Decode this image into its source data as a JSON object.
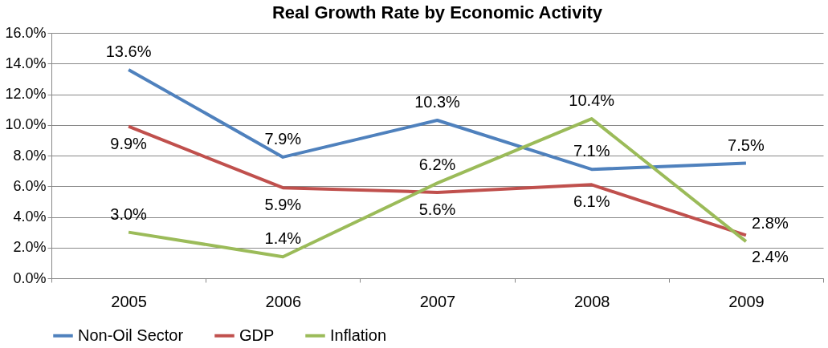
{
  "chart_data": {
    "type": "line",
    "title": "Real Growth Rate by Economic Activity",
    "categories": [
      "2005",
      "2006",
      "2007",
      "2008",
      "2009"
    ],
    "ylim": [
      0,
      16
    ],
    "yticks": [
      {
        "value": 0,
        "label": "0.0%"
      },
      {
        "value": 2,
        "label": "2.0%"
      },
      {
        "value": 4,
        "label": "4.0%"
      },
      {
        "value": 6,
        "label": "6.0%"
      },
      {
        "value": 8,
        "label": "8.0%"
      },
      {
        "value": 10,
        "label": "10.0%"
      },
      {
        "value": 12,
        "label": "12.0%"
      },
      {
        "value": 14,
        "label": "14.0%"
      },
      {
        "value": 16,
        "label": "16.0%"
      }
    ],
    "grid": "y",
    "legend": "bottom",
    "marker": "none",
    "line_style": "solid",
    "series": [
      {
        "name": "Non-Oil Sector",
        "color": "#4f81bd",
        "values": [
          13.6,
          7.9,
          10.3,
          7.1,
          7.5
        ],
        "value_labels": [
          "13.6%",
          "7.9%",
          "10.3%",
          "7.1%",
          "7.5%"
        ]
      },
      {
        "name": "GDP",
        "color": "#c0504d",
        "values": [
          9.9,
          5.9,
          5.6,
          6.1,
          2.8
        ],
        "value_labels": [
          "9.9%",
          "5.9%",
          "5.6%",
          "6.1%",
          "2.8%"
        ]
      },
      {
        "name": "Inflation",
        "color": "#9bbb59",
        "values": [
          3.0,
          1.4,
          6.2,
          10.4,
          2.4
        ],
        "value_labels": [
          "3.0%",
          "1.4%",
          "6.2%",
          "10.4%",
          "2.4%"
        ]
      }
    ]
  }
}
